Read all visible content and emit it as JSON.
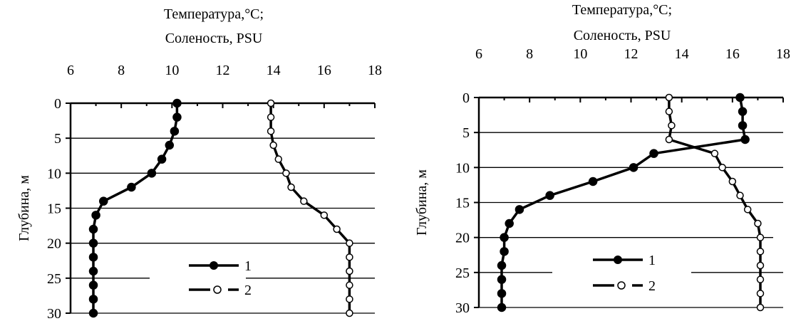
{
  "chart_data": [
    {
      "type": "line",
      "title_lines": [
        "Температура,°C;",
        "Соленость, PSU"
      ],
      "xlabel": "",
      "ylabel": "Глубина, м",
      "x_range": [
        6,
        18
      ],
      "y_range": [
        0,
        30
      ],
      "y_inverted": true,
      "x_axis_position": "top",
      "x_ticks": [
        6,
        8,
        10,
        12,
        14,
        16,
        18
      ],
      "y_ticks": [
        0,
        5,
        10,
        15,
        20,
        25,
        30
      ],
      "grid": "horizontal",
      "legend_position": "lower-center",
      "series": [
        {
          "name": "1",
          "marker": "filled-circle",
          "depth": [
            0,
            2,
            4,
            6,
            8,
            10,
            12,
            14,
            16,
            18,
            20,
            22,
            24,
            26,
            28,
            30
          ],
          "values": [
            10.2,
            10.2,
            10.1,
            9.9,
            9.6,
            9.2,
            8.4,
            7.3,
            7.0,
            6.9,
            6.9,
            6.9,
            6.9,
            6.9,
            6.9,
            6.9
          ]
        },
        {
          "name": "2",
          "marker": "open-circle",
          "depth": [
            0,
            2,
            4,
            6,
            8,
            10,
            12,
            14,
            16,
            18,
            20,
            22,
            24,
            26,
            28,
            30
          ],
          "values": [
            13.9,
            13.9,
            13.9,
            14.0,
            14.2,
            14.5,
            14.7,
            15.2,
            16.0,
            16.5,
            17.0,
            17.0,
            17.0,
            17.0,
            17.0,
            17.0
          ]
        }
      ]
    },
    {
      "type": "line",
      "title_lines": [
        "Температура,°C;",
        "Соленость, PSU"
      ],
      "xlabel": "",
      "ylabel": "Глубина, м",
      "x_range": [
        6,
        18
      ],
      "y_range": [
        0,
        30
      ],
      "y_inverted": true,
      "x_axis_position": "top",
      "x_ticks": [
        6,
        8,
        10,
        12,
        14,
        16,
        18
      ],
      "y_ticks": [
        0,
        5,
        10,
        15,
        20,
        25,
        30
      ],
      "grid": "horizontal",
      "legend_position": "lower-center",
      "series": [
        {
          "name": "1",
          "marker": "filled-circle",
          "depth": [
            0,
            2,
            4,
            6,
            8,
            10,
            12,
            14,
            16,
            18,
            20,
            22,
            24,
            26,
            28,
            30
          ],
          "values": [
            16.3,
            16.4,
            16.4,
            16.5,
            12.9,
            12.1,
            10.5,
            8.8,
            7.6,
            7.2,
            7.0,
            7.0,
            6.9,
            6.9,
            6.9,
            6.9
          ]
        },
        {
          "name": "2",
          "marker": "open-circle",
          "depth": [
            0,
            2,
            4,
            6,
            8,
            10,
            12,
            14,
            16,
            18,
            20,
            22,
            24,
            26,
            28,
            30
          ],
          "values": [
            13.5,
            13.5,
            13.6,
            13.5,
            15.3,
            15.6,
            16.0,
            16.3,
            16.6,
            17.0,
            17.1,
            17.1,
            17.1,
            17.1,
            17.1,
            17.1
          ]
        }
      ]
    }
  ]
}
